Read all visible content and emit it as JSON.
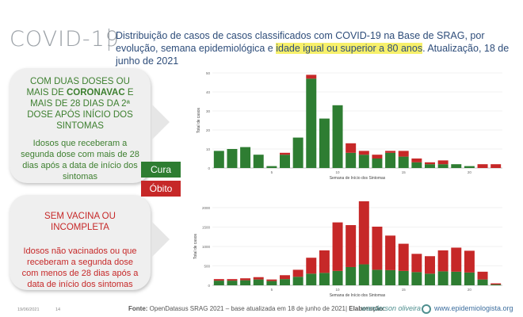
{
  "header": {
    "logo_text": "COVID-19",
    "subtitle_part1": "Distribuição de casos de casos classificados com COVID-19 na Base de SRAG, por evolução, semana epidemiológica e ",
    "subtitle_highlight": "idade igual ou superior a 80 anos",
    "subtitle_part2": ". Atualização, 18 de junho de 2021"
  },
  "pills": {
    "top": {
      "title_pre": "COM DUAS DOSES OU MAIS DE ",
      "title_bold": "CORONAVAC",
      "title_post": " E MAIS DE 28 DIAS DA 2ª DOSE APÓS INÍCIO DOS SINTOMAS",
      "body": "Idosos que receberam a segunda dose com mais de 28 dias após a data de início dos sintomas"
    },
    "bottom": {
      "title": "SEM VACINA OU INCOMPLETA",
      "body": "Idosos não vacinados ou que receberam a segunda dose com menos de 28 dias após a data de início dos sintomas"
    }
  },
  "legend": {
    "cura": "Cura",
    "obito": "Óbito",
    "cura_color": "#2e7d32",
    "obito_color": "#c62828"
  },
  "chart_data": [
    {
      "type": "bar",
      "stacked": true,
      "xlabel": "Semana de Início dos Sintomas",
      "ylabel": "Total de casos",
      "ylim": [
        0,
        50
      ],
      "yticks": [
        0,
        10,
        20,
        30,
        40,
        50
      ],
      "x": [
        1,
        2,
        3,
        4,
        5,
        6,
        7,
        8,
        9,
        10,
        11,
        12,
        13,
        14,
        15,
        16,
        17,
        18,
        19,
        20,
        21,
        22
      ],
      "xticks": [
        5,
        10,
        15,
        20
      ],
      "series": [
        {
          "name": "Cura",
          "color": "#2e7d32",
          "values": [
            9,
            10,
            11,
            7,
            1,
            7,
            16,
            47,
            26,
            33,
            8,
            7,
            5,
            8,
            6,
            3,
            2,
            2,
            2,
            1,
            0,
            0
          ]
        },
        {
          "name": "Óbito",
          "color": "#c62828",
          "values": [
            0,
            0,
            0,
            0,
            0,
            1,
            0,
            2,
            0,
            0,
            5,
            2,
            2,
            1,
            3,
            2,
            1,
            2,
            0,
            0,
            2,
            2
          ]
        }
      ]
    },
    {
      "type": "bar",
      "stacked": true,
      "xlabel": "Semana de Início dos Sintomas",
      "ylabel": "Total de casos",
      "ylim": [
        0,
        2000
      ],
      "yticks": [
        0,
        500,
        1000,
        1500,
        2000
      ],
      "x": [
        1,
        2,
        3,
        4,
        5,
        6,
        7,
        8,
        9,
        10,
        11,
        12,
        13,
        14,
        15,
        16,
        17,
        18,
        19,
        20,
        21,
        22
      ],
      "xticks": [
        5,
        10,
        15,
        20
      ],
      "series": [
        {
          "name": "Cura",
          "color": "#2e7d32",
          "values": [
            120,
            120,
            130,
            150,
            110,
            160,
            220,
            300,
            320,
            370,
            470,
            540,
            400,
            390,
            370,
            340,
            300,
            360,
            350,
            330,
            150,
            20
          ]
        },
        {
          "name": "Óbito",
          "color": "#c62828",
          "values": [
            40,
            40,
            50,
            60,
            40,
            100,
            180,
            410,
            580,
            1250,
            1080,
            1660,
            1110,
            890,
            700,
            470,
            450,
            540,
            620,
            560,
            200,
            30
          ]
        }
      ]
    }
  ],
  "footer": {
    "date": "19/06/2021",
    "page": "14",
    "source_label": "Fonte:",
    "source_text": " OpenDatasus SRAG 2021 – base atualizada em 18 de junho de 2021| ",
    "elab_label": "Elaboração:",
    "author": "wanderson oliveira",
    "site": "www.epidemiologista.org"
  }
}
